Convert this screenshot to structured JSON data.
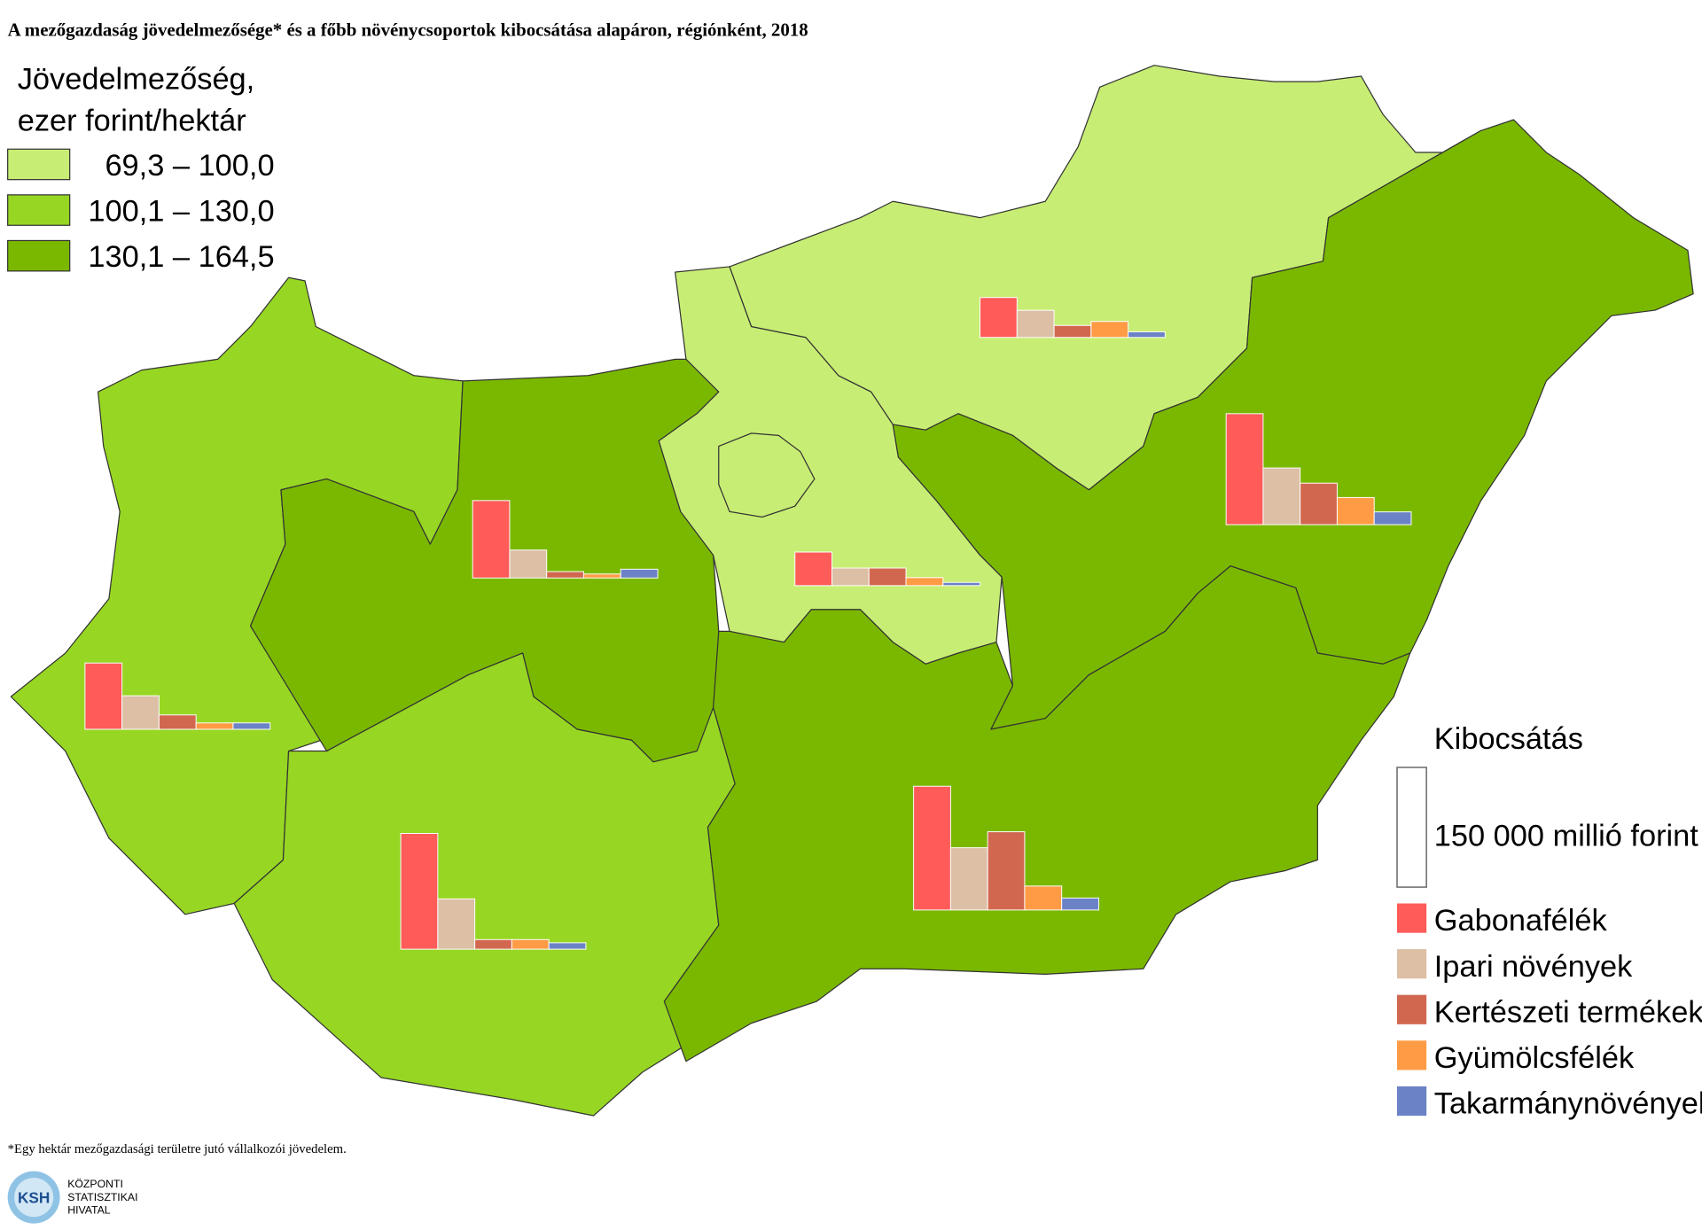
{
  "title": "A mezőgazdaság jövedelmezősége* és a főbb növénycsoportok kibocsátása alapáron, régiónként, 2018",
  "income_legend": {
    "title_lines": [
      "Jövedelmezőség,",
      "ezer forint/hektár"
    ],
    "classes": [
      {
        "label": "69,3 – 100,0",
        "color": "#c8ed74"
      },
      {
        "label": "100,1 – 130,0",
        "color": "#97d623"
      },
      {
        "label": "130,1 – 164,5",
        "color": "#7ab800"
      }
    ]
  },
  "output_legend": {
    "title": "Kibocsátás",
    "scale_label": "150 000 millió forint",
    "scale_value": 150000,
    "series": [
      {
        "name": "Gabonafélék",
        "color": "#fe5b59"
      },
      {
        "name": "Ipari növények",
        "color": "#dcbfa5"
      },
      {
        "name": "Kertészeti termékek",
        "color": "#d2674f"
      },
      {
        "name": "Gyümölcsfélék",
        "color": "#ff9b45"
      },
      {
        "name": "Takarmánynövények",
        "color": "#6b82c6"
      }
    ]
  },
  "regions": [
    {
      "color": "#c8ed74",
      "values": [
        50000,
        34000,
        15000,
        20000,
        7000
      ]
    },
    {
      "color": "#7ab800",
      "values": [
        139000,
        71000,
        52000,
        34000,
        16000
      ]
    },
    {
      "color": "#c8ed74",
      "values": [
        42000,
        22000,
        22000,
        10000,
        4000
      ]
    },
    {
      "color": "#7ab800",
      "values": [
        97000,
        35000,
        8000,
        5000,
        11000
      ]
    },
    {
      "color": "#97d623",
      "values": [
        83000,
        42000,
        18000,
        8000,
        8000
      ]
    },
    {
      "color": "#97d623",
      "values": [
        145000,
        63000,
        12000,
        12000,
        8000
      ]
    },
    {
      "color": "#7ab800",
      "values": [
        155000,
        78000,
        98000,
        30000,
        15000
      ]
    }
  ],
  "footnote": "*Egy hektár mezőgazdasági területre jutó vállalkozói jövedelem.",
  "logo": {
    "abbr": "KSH",
    "lines": [
      "KÖZPONTI",
      "STATISZTIKAI",
      "HIVATAL"
    ]
  }
}
